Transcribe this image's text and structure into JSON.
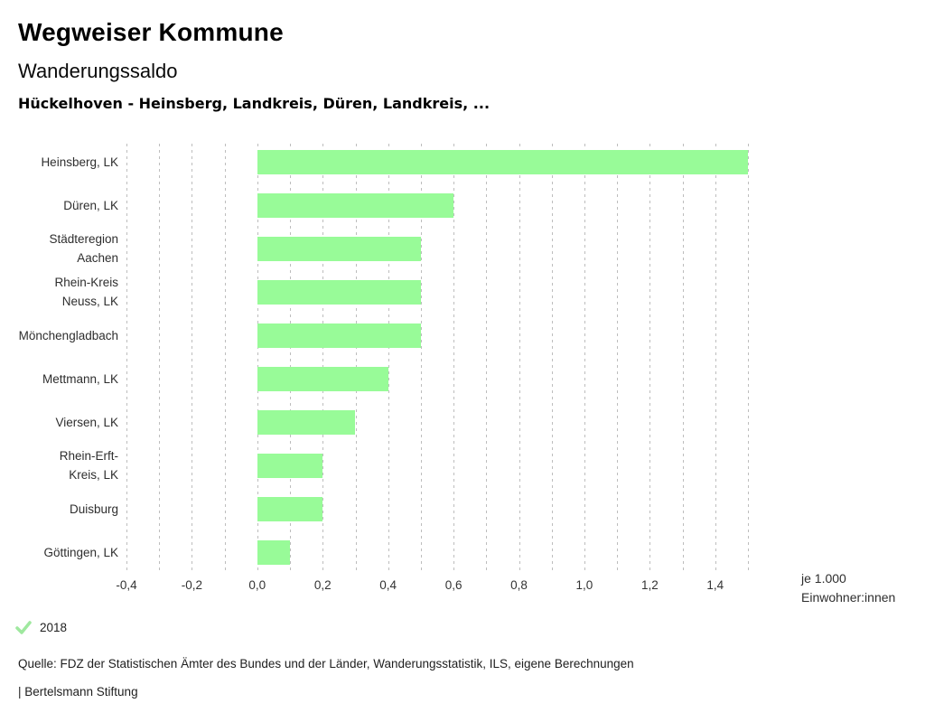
{
  "header": {
    "title": "Wegweiser Kommune",
    "subtitle": "Wanderungssaldo",
    "description": "Hückelhoven - Heinsberg, Landkreis, Düren, Landkreis, ..."
  },
  "chart_data": {
    "type": "bar",
    "orientation": "horizontal",
    "title": "Wanderungssaldo",
    "comparison": "Hückelhoven - Heinsberg, Landkreis, Düren, Landkreis, ...",
    "categories": [
      "Heinsberg, LK",
      "Düren, LK",
      "Städteregion\nAachen",
      "Rhein-Kreis\nNeuss, LK",
      "Mönchengladbach",
      "Mettmann, LK",
      "Viersen, LK",
      "Rhein-Erft-\nKreis, LK",
      "Duisburg",
      "Göttingen, LK"
    ],
    "series": [
      {
        "name": "2018",
        "values": [
          1.5,
          0.6,
          0.5,
          0.5,
          0.5,
          0.4,
          0.3,
          0.2,
          0.2,
          0.1
        ]
      }
    ],
    "xlim": [
      -0.4,
      1.5
    ],
    "grid_step": 0.1,
    "x_ticks": [
      -0.4,
      -0.2,
      0.0,
      0.2,
      0.4,
      0.6,
      0.8,
      1.0,
      1.2,
      1.4
    ],
    "x_tick_labels": [
      "-0,4",
      "-0,2",
      "0,0",
      "0,2",
      "0,4",
      "0,6",
      "0,8",
      "1,0",
      "1,2",
      "1,4"
    ],
    "xlabel_line1": "je 1.000",
    "xlabel_line2": "Einwohner:innen",
    "bar_color": "#98FB98",
    "gridline_color": "#bdbdbd",
    "grid": "vertical dotted",
    "legend_position": "bottom-left"
  },
  "legend": {
    "year": "2018",
    "check_color": "#9fe89f"
  },
  "footer": {
    "source": "Quelle: FDZ der Statistischen Ämter des Bundes und der Länder, Wanderungsstatistik, ILS, eigene Berechnungen",
    "attribution": "| Bertelsmann Stiftung"
  }
}
